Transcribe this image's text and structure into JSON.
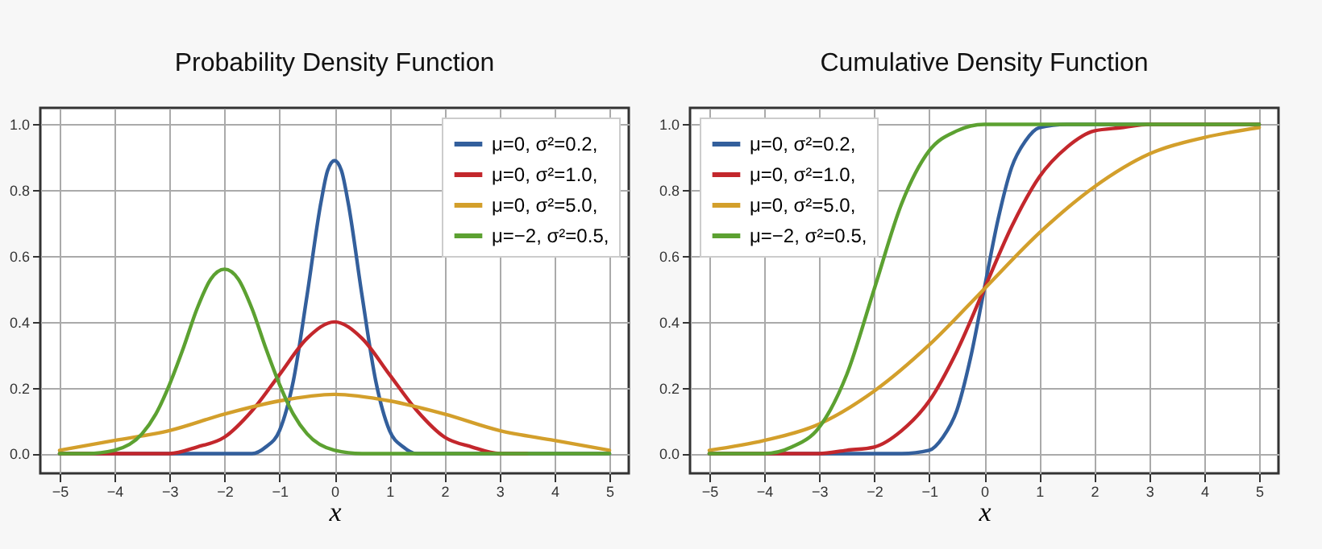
{
  "chart_data": [
    {
      "type": "line",
      "title": "Probability Density Function",
      "xlabel": "x",
      "xlim": [
        -5.35,
        5.35
      ],
      "ylim": [
        -0.06,
        1.05
      ],
      "xticks": [
        {
          "value": -5,
          "label": "−5"
        },
        {
          "value": -4,
          "label": "−4"
        },
        {
          "value": -3,
          "label": "−3"
        },
        {
          "value": -2,
          "label": "−2"
        },
        {
          "value": -1,
          "label": "−1"
        },
        0,
        1,
        2,
        3,
        4,
        5
      ],
      "yticks": [
        {
          "value": 0,
          "label": "0.0"
        },
        {
          "value": 0.2,
          "label": "0.2"
        },
        {
          "value": 0.4,
          "label": "0.4"
        },
        {
          "value": 0.6,
          "label": "0.6"
        },
        {
          "value": 0.8,
          "label": "0.8"
        },
        {
          "value": 1,
          "label": "1.0"
        }
      ],
      "grid": true,
      "legend": "top right",
      "line_style": "solid",
      "series": [
        {
          "name": "μ=0,   σ²=0.2,",
          "color": "#335f9c",
          "x": [
            -5,
            -2,
            -1.5,
            -1.25,
            -1,
            -0.75,
            -0.5,
            -0.25,
            -0.125,
            0,
            0.125,
            0.25,
            0.5,
            0.75,
            1,
            1.25,
            1.5,
            2,
            5
          ],
          "values": [
            0,
            0,
            0,
            0.02,
            0.07,
            0.22,
            0.48,
            0.76,
            0.86,
            0.89,
            0.86,
            0.76,
            0.48,
            0.22,
            0.07,
            0.02,
            0,
            0,
            0
          ]
        },
        {
          "name": "μ=0,   σ²=1.0,",
          "color": "#c3272c",
          "x": [
            -5,
            -4,
            -3.5,
            -3,
            -2.5,
            -2,
            -1.5,
            -1,
            -0.5,
            0,
            0.5,
            1,
            1.5,
            2,
            2.5,
            3,
            3.5
          ],
          "values": [
            0,
            0,
            0,
            0,
            0.02,
            0.05,
            0.13,
            0.24,
            0.35,
            0.4,
            0.35,
            0.24,
            0.13,
            0.05,
            0.02,
            0,
            0
          ]
        },
        {
          "name": "μ=0,   σ²=5.0,",
          "color": "#d39f2b",
          "x": [
            -5,
            -4,
            -3,
            -2,
            -1,
            0,
            1,
            2,
            3,
            4,
            5
          ],
          "values": [
            0.01,
            0.04,
            0.07,
            0.12,
            0.16,
            0.18,
            0.16,
            0.12,
            0.07,
            0.04,
            0.01
          ]
        },
        {
          "name": "μ=−2, σ²=0.5,",
          "color": "#5ca131",
          "x": [
            -5,
            -4.5,
            -4,
            -3.5,
            -3.25,
            -3,
            -2.75,
            -2.5,
            -2.25,
            -2,
            -1.75,
            -1.5,
            -1.25,
            -1,
            -0.75,
            -0.5,
            0,
            0.5,
            5
          ],
          "values": [
            0,
            0,
            0.01,
            0.06,
            0.12,
            0.21,
            0.32,
            0.44,
            0.53,
            0.56,
            0.53,
            0.44,
            0.32,
            0.21,
            0.12,
            0.06,
            0.01,
            0,
            0
          ]
        }
      ]
    },
    {
      "type": "line",
      "title": "Cumulative Density Function",
      "xlabel": "x",
      "xlim": [
        -5.35,
        5.35
      ],
      "ylim": [
        -0.06,
        1.05
      ],
      "xticks": [
        {
          "value": -5,
          "label": "−5"
        },
        {
          "value": -4,
          "label": "−4"
        },
        {
          "value": -3,
          "label": "−3"
        },
        {
          "value": -2,
          "label": "−2"
        },
        {
          "value": -1,
          "label": "−1"
        },
        0,
        1,
        2,
        3,
        4,
        5
      ],
      "yticks": [
        {
          "value": 0,
          "label": "0.0"
        },
        {
          "value": 0.2,
          "label": "0.2"
        },
        {
          "value": 0.4,
          "label": "0.4"
        },
        {
          "value": 0.6,
          "label": "0.6"
        },
        {
          "value": 0.8,
          "label": "0.8"
        },
        {
          "value": 1,
          "label": "1.0"
        }
      ],
      "grid": true,
      "legend": "top left",
      "line_style": "solid",
      "series": [
        {
          "name": "μ=0,   σ²=0.2,",
          "color": "#335f9c",
          "x": [
            -5,
            -1.5,
            -1,
            -0.75,
            -0.5,
            -0.25,
            0,
            0.25,
            0.5,
            0.75,
            1,
            1.5,
            5
          ],
          "values": [
            0,
            0,
            0.01,
            0.05,
            0.13,
            0.29,
            0.5,
            0.71,
            0.87,
            0.95,
            0.99,
            1,
            1
          ]
        },
        {
          "name": "μ=0,   σ²=1.0,",
          "color": "#c3272c",
          "x": [
            -5,
            -3,
            -2.5,
            -2,
            -1.5,
            -1,
            -0.5,
            0,
            0.5,
            1,
            1.5,
            2,
            2.5,
            3,
            5
          ],
          "values": [
            0,
            0,
            0.01,
            0.02,
            0.07,
            0.16,
            0.31,
            0.5,
            0.69,
            0.84,
            0.93,
            0.98,
            0.99,
            1,
            1
          ]
        },
        {
          "name": "μ=0,   σ²=5.0,",
          "color": "#d39f2b",
          "x": [
            -5,
            -4,
            -3,
            -2,
            -1,
            0,
            1,
            2,
            3,
            4,
            5
          ],
          "values": [
            0.01,
            0.04,
            0.09,
            0.19,
            0.33,
            0.5,
            0.67,
            0.81,
            0.91,
            0.96,
            0.99
          ]
        },
        {
          "name": "μ=−2, σ²=0.5,",
          "color": "#5ca131",
          "x": [
            -5,
            -4,
            -3.5,
            -3,
            -2.5,
            -2,
            -1.5,
            -1,
            -0.5,
            0,
            5
          ],
          "values": [
            0,
            0,
            0.02,
            0.08,
            0.24,
            0.5,
            0.76,
            0.92,
            0.98,
            1,
            1
          ]
        }
      ]
    }
  ]
}
